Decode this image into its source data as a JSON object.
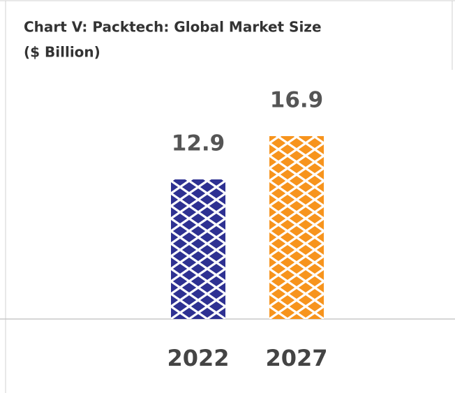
{
  "chart_data": {
    "type": "bar",
    "title": "Chart V: Packtech: Global Market Size",
    "subtitle": "($ Billion)",
    "categories": [
      "2022",
      "2027"
    ],
    "values": [
      12.9,
      16.9
    ],
    "colors": [
      "#2e3192",
      "#f7941d"
    ]
  }
}
